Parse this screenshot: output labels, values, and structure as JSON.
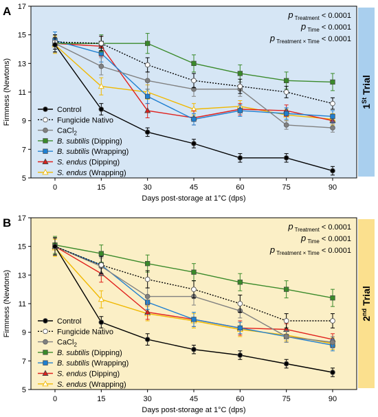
{
  "colors": {
    "control": "#000000",
    "fungicide": "#000000",
    "cacl2": "#808080",
    "bs_dip": "#3a8a2a",
    "bs_wrap": "#1f7fd0",
    "se_dip": "#e0201c",
    "se_wrap": "#f0b800",
    "panel_a_bg": "#d6e6f5",
    "panel_b_bg": "#fbefc6",
    "trial1_tab": "#a9cfee",
    "trial2_tab": "#fbe08e"
  },
  "chart_data": [
    {
      "type": "line",
      "panel_label": "A",
      "side_label": {
        "prefix": "1",
        "sup": "St",
        "suffix": " Trial"
      },
      "xlabel": "Days post-storage at 1°C (dps)",
      "ylabel": "Firmness (Newtons)",
      "x": [
        0,
        15,
        30,
        45,
        60,
        75,
        90
      ],
      "x_ticks": [
        "0",
        "15",
        "30",
        "45",
        "60",
        "75",
        "90"
      ],
      "ylim": [
        5,
        17
      ],
      "y_ticks": [
        "5",
        "7",
        "9",
        "11",
        "13",
        "15",
        "17"
      ],
      "stats": [
        {
          "p": "p",
          "sub": "Treatment",
          "rest": " < 0.0001"
        },
        {
          "p": "p",
          "sub": "Time",
          "rest": " < 0.0001"
        },
        {
          "p": "p",
          "sub": "Treatment × Time",
          "rest": " < 0.0001"
        }
      ],
      "series": [
        {
          "key": "control",
          "name": "Control",
          "marker": "circle",
          "fill": "filled",
          "dash": "solid",
          "values": [
            14.3,
            9.8,
            8.2,
            7.4,
            6.4,
            6.4,
            5.5
          ],
          "err": [
            0.5,
            0.4,
            0.3,
            0.3,
            0.3,
            0.3,
            0.3
          ]
        },
        {
          "key": "fungicide",
          "name": "Fungicide Nativo",
          "marker": "circle",
          "fill": "open",
          "dash": "dotted",
          "values": [
            14.5,
            14.4,
            12.9,
            11.8,
            11.4,
            11.0,
            10.2
          ],
          "err": [
            0.5,
            0.5,
            0.5,
            0.5,
            0.5,
            0.4,
            0.4
          ]
        },
        {
          "key": "cacl2",
          "name": "CaCl",
          "name_sub": "2",
          "marker": "circle",
          "fill": "filled",
          "dash": "solid",
          "values": [
            14.4,
            12.8,
            11.8,
            11.2,
            11.2,
            8.7,
            8.5
          ],
          "err": [
            0.6,
            0.6,
            0.6,
            0.5,
            0.5,
            0.3,
            0.3
          ]
        },
        {
          "key": "bs_dip",
          "name_italic": "B. subtilis",
          "name_rest": " (Dipping)",
          "marker": "square",
          "fill": "filled",
          "dash": "solid",
          "values": [
            14.4,
            14.4,
            14.4,
            13.0,
            12.3,
            11.8,
            11.7
          ],
          "err": [
            0.6,
            0.6,
            0.7,
            0.6,
            0.6,
            0.6,
            0.6
          ]
        },
        {
          "key": "bs_wrap",
          "name_italic": "B. subtilis",
          "name_rest": " (Wrapping)",
          "marker": "square",
          "fill": "filled",
          "dash": "solid",
          "values": [
            14.6,
            13.7,
            10.7,
            9.1,
            9.7,
            9.5,
            9.3
          ],
          "err": [
            0.6,
            0.6,
            0.5,
            0.4,
            0.4,
            0.4,
            0.4
          ]
        },
        {
          "key": "se_dip",
          "name_italic": "S. endus",
          "name_rest": " (Dipping)",
          "marker": "triangle",
          "fill": "filled",
          "dash": "solid",
          "values": [
            14.4,
            14.2,
            9.7,
            9.2,
            9.8,
            9.7,
            9.0
          ],
          "err": [
            0.6,
            0.7,
            0.5,
            0.5,
            0.4,
            0.4,
            0.4
          ]
        },
        {
          "key": "se_wrap",
          "name_italic": "S. endus",
          "name_rest": " (Wrapping)",
          "marker": "triangle",
          "fill": "open",
          "dash": "solid",
          "values": [
            14.3,
            11.4,
            11.0,
            9.8,
            10.0,
            9.4,
            9.1
          ],
          "err": [
            0.6,
            0.6,
            0.5,
            0.4,
            0.4,
            0.4,
            0.4
          ]
        }
      ]
    },
    {
      "type": "line",
      "panel_label": "B",
      "side_label": {
        "prefix": "2",
        "sup": "nd",
        "suffix": " Trial"
      },
      "xlabel": "Days post-storage at 1°C (dps)",
      "ylabel": "Firmness (Newtons)",
      "x": [
        0,
        15,
        30,
        45,
        60,
        75,
        90
      ],
      "x_ticks": [
        "0",
        "15",
        "30",
        "45",
        "60",
        "75",
        "90"
      ],
      "ylim": [
        5,
        17
      ],
      "y_ticks": [
        "5",
        "7",
        "9",
        "11",
        "13",
        "15",
        "17"
      ],
      "stats": [
        {
          "p": "p",
          "sub": "Treatment",
          "rest": " < 0.0001"
        },
        {
          "p": "p",
          "sub": "Time",
          "rest": " < 0.0001"
        },
        {
          "p": "p",
          "sub": "Treatment × Time",
          "rest": " < 0.0001"
        }
      ],
      "series": [
        {
          "key": "control",
          "name": "Control",
          "marker": "circle",
          "fill": "filled",
          "dash": "solid",
          "values": [
            15.0,
            9.7,
            8.5,
            7.8,
            7.4,
            6.8,
            6.2
          ],
          "err": [
            0.6,
            0.4,
            0.4,
            0.3,
            0.3,
            0.3,
            0.3
          ]
        },
        {
          "key": "fungicide",
          "name": "Fungicide Nativo",
          "marker": "circle",
          "fill": "open",
          "dash": "dotted",
          "values": [
            15.0,
            13.7,
            12.7,
            12.0,
            11.0,
            9.8,
            9.8
          ],
          "err": [
            0.6,
            0.6,
            0.6,
            0.6,
            0.6,
            0.5,
            0.5
          ]
        },
        {
          "key": "cacl2",
          "name": "CaCl",
          "name_sub": "2",
          "marker": "circle",
          "fill": "filled",
          "dash": "solid",
          "values": [
            15.0,
            13.6,
            11.5,
            11.5,
            10.5,
            8.7,
            8.3
          ],
          "err": [
            0.6,
            0.6,
            0.6,
            0.6,
            0.5,
            0.4,
            0.4
          ]
        },
        {
          "key": "bs_dip",
          "name_italic": "B. subtilis",
          "name_rest": " (Dipping)",
          "marker": "square",
          "fill": "filled",
          "dash": "solid",
          "values": [
            15.1,
            14.5,
            13.8,
            13.2,
            12.5,
            12.0,
            11.4
          ],
          "err": [
            0.6,
            0.6,
            0.6,
            0.6,
            0.6,
            0.6,
            0.6
          ]
        },
        {
          "key": "bs_wrap",
          "name_italic": "B. subtilis",
          "name_rest": " (Wrapping)",
          "marker": "square",
          "fill": "filled",
          "dash": "solid",
          "values": [
            15.0,
            13.7,
            11.1,
            9.9,
            9.3,
            8.7,
            8.1
          ],
          "err": [
            0.6,
            0.6,
            0.5,
            0.5,
            0.4,
            0.4,
            0.4
          ]
        },
        {
          "key": "se_dip",
          "name_italic": "S. endus",
          "name_rest": " (Dipping)",
          "marker": "triangle",
          "fill": "filled",
          "dash": "solid",
          "values": [
            15.0,
            13.1,
            10.4,
            9.9,
            9.3,
            9.2,
            8.5
          ],
          "err": [
            0.6,
            0.6,
            0.5,
            0.5,
            0.5,
            0.4,
            0.4
          ]
        },
        {
          "key": "se_wrap",
          "name_italic": "S. endus",
          "name_rest": " (Wrapping)",
          "marker": "triangle",
          "fill": "open",
          "dash": "solid",
          "values": [
            14.9,
            11.3,
            10.3,
            9.8,
            9.2,
            8.8,
            8.2
          ],
          "err": [
            0.6,
            0.6,
            0.5,
            0.5,
            0.5,
            0.4,
            0.4
          ]
        }
      ]
    }
  ]
}
